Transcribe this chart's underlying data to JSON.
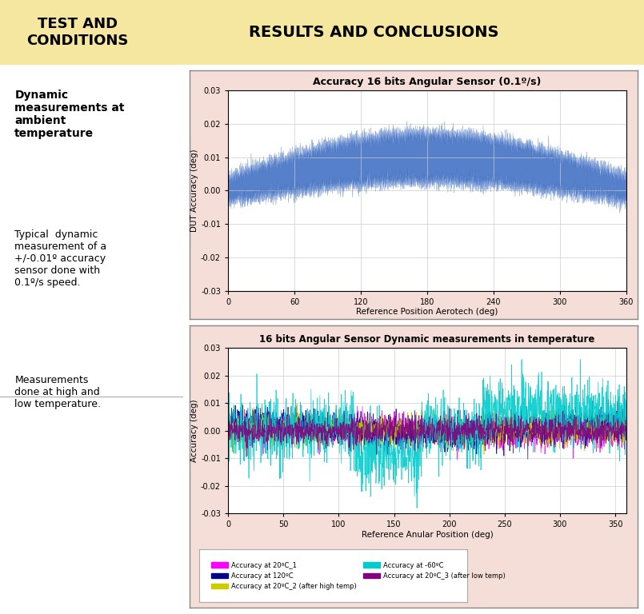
{
  "header_bg": "#f5e6a0",
  "header_text_left": "TEST AND\nCONDITIONS",
  "header_text_right": "RESULTS AND CONCLUSIONS",
  "body_bg": "#ffffff",
  "left_panel_bg": "#ffffff",
  "chart_bg": "#f5ddd8",
  "plot_bg": "#ffffff",
  "left_text_bold": "Dynamic\nmeasurements at\nambient\ntemperature",
  "left_text_normal1": "Typical  dynamic\nmeasurement of a\n+/-0.01º accuracy\nsensor done with\n0.1º/s speed.",
  "left_text_normal2": "Measurements\ndone at high and\nlow temperature.",
  "chart1_title": "Accuracy 16 bits Angular Sensor (0.1º/s)",
  "chart1_xlabel": "Reference Position Aerotech (deg)",
  "chart1_ylabel": "DUT Accuracy (deg)",
  "chart1_xlim": [
    0,
    360
  ],
  "chart1_ylim": [
    -0.03,
    0.03
  ],
  "chart1_xticks": [
    0,
    60,
    120,
    180,
    240,
    300,
    360
  ],
  "chart1_yticks": [
    -0.03,
    -0.02,
    -0.01,
    0,
    0.01,
    0.02,
    0.03
  ],
  "chart1_color": "#4472c4",
  "chart2_title": "16 bits Angular Sensor Dynamic measurements in temperature",
  "chart2_xlabel": "Reference Anular Position (deg)",
  "chart2_ylabel": "Accuracy (deg)",
  "chart2_xlim": [
    0,
    360
  ],
  "chart2_ylim": [
    -0.03,
    0.03
  ],
  "chart2_xticks": [
    0,
    50,
    100,
    150,
    200,
    250,
    300,
    350
  ],
  "chart2_yticks": [
    -0.03,
    -0.02,
    -0.01,
    0,
    0.01,
    0.02,
    0.03
  ],
  "legend_entries": [
    {
      "label": "Accuracy at 20ºC_1",
      "color": "#ff00ff"
    },
    {
      "label": "Accuracy at 120ºC",
      "color": "#00008b"
    },
    {
      "label": "Accuracy at 20ºC_2 (after high temp)",
      "color": "#cccc00"
    },
    {
      "label": "Accuracy at -60ºC",
      "color": "#00cccc"
    },
    {
      "label": "Accuracy at 20ºC_3 (after low temp)",
      "color": "#800080"
    }
  ]
}
